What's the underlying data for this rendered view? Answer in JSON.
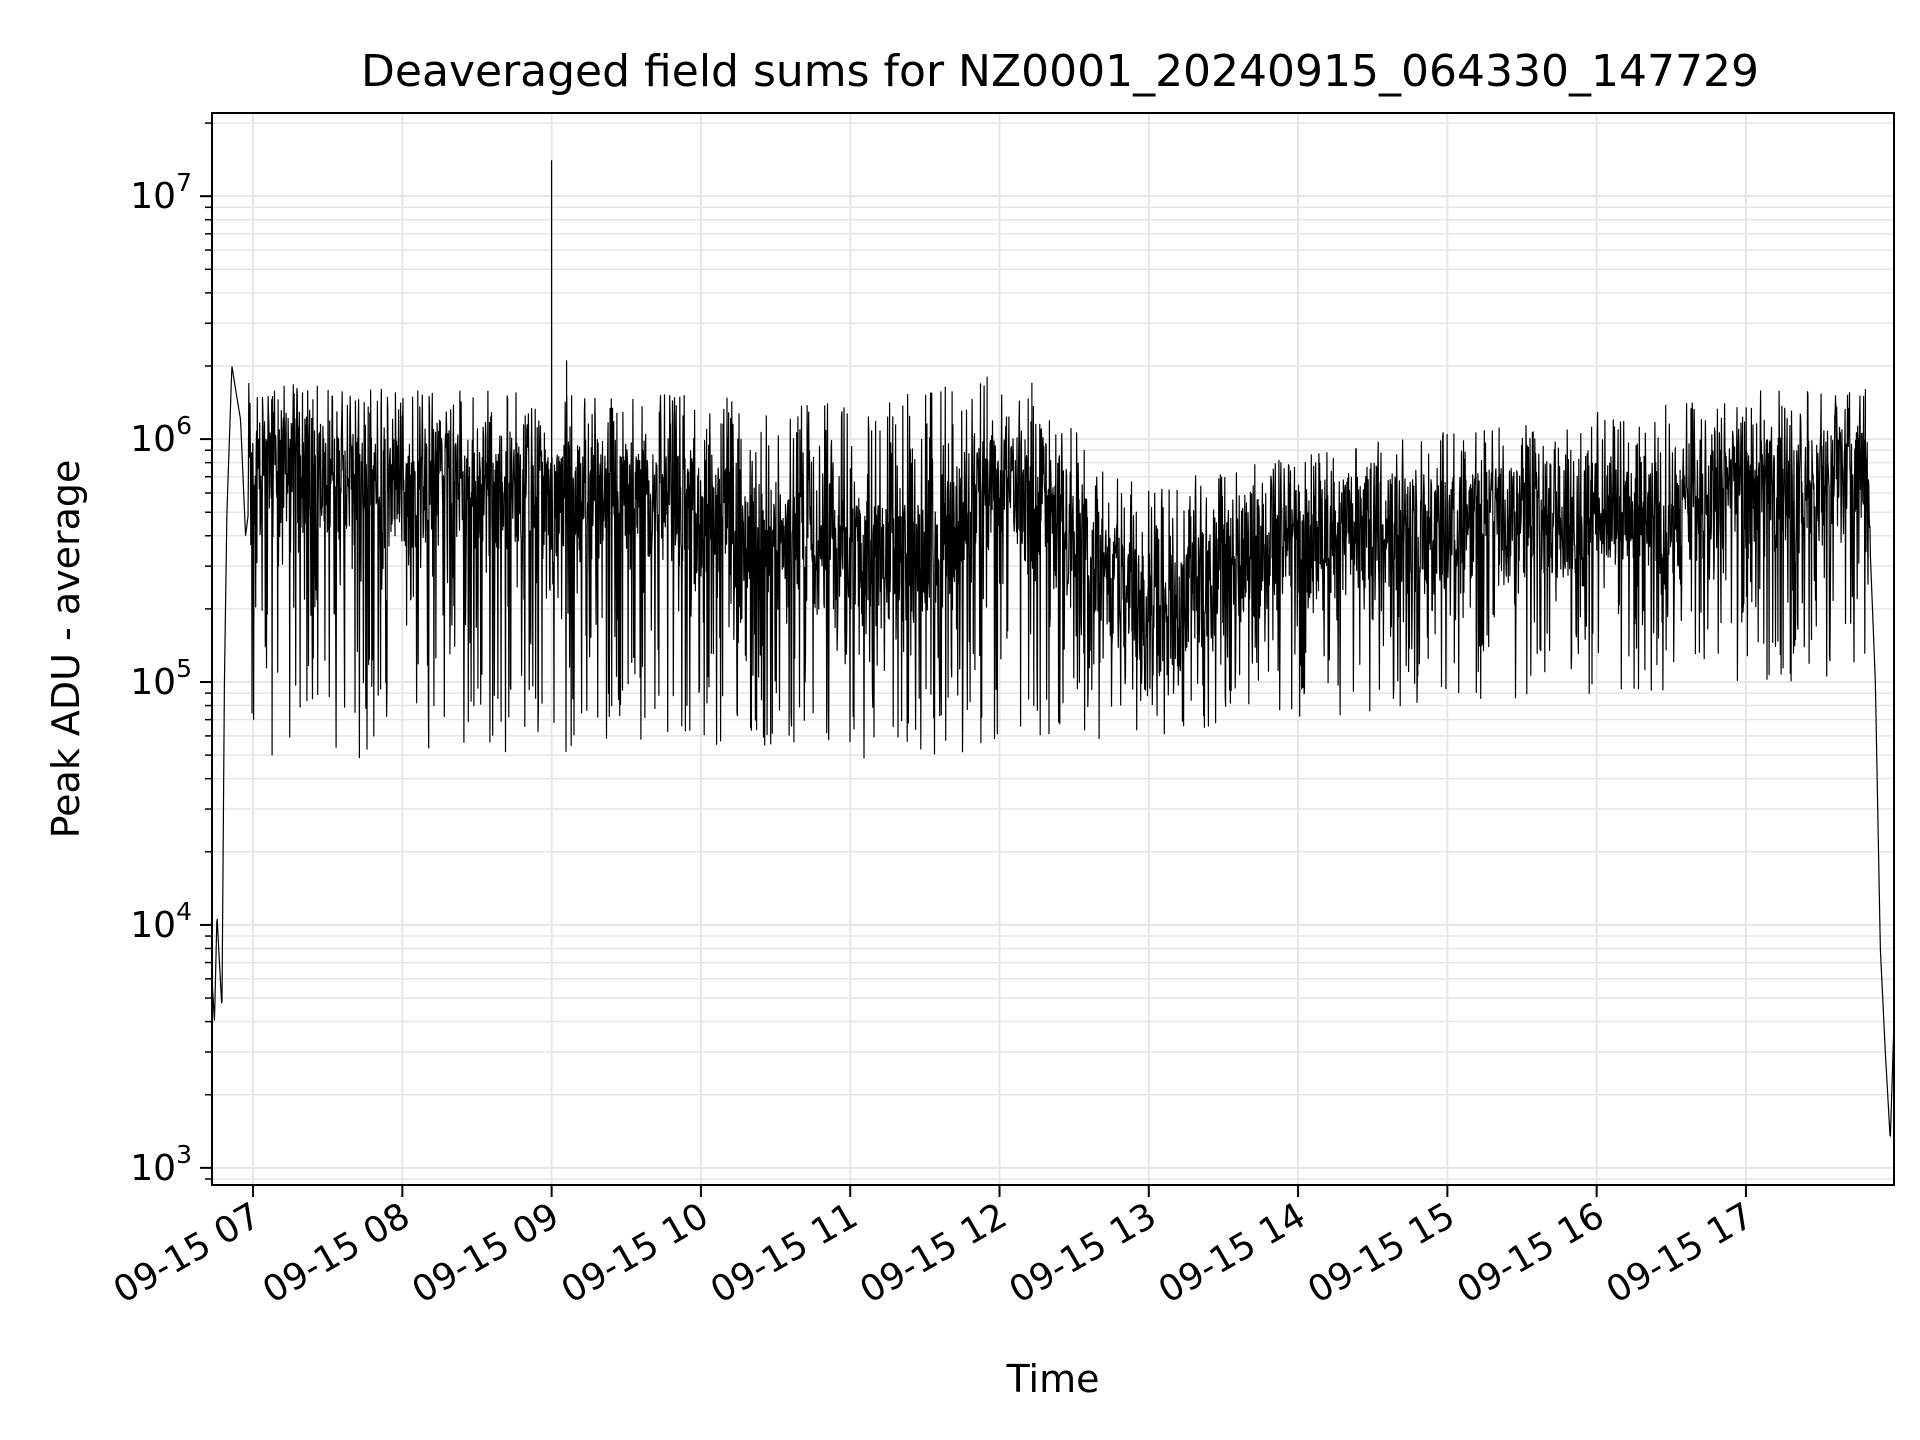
{
  "chart_data": {
    "type": "line",
    "title": "Deaveraged field sums for NZ0001_20240915_064330_147729",
    "xlabel": "Time",
    "ylabel": "Peak ADU - average",
    "yscale": "log",
    "ylim": [
      850,
      22000000
    ],
    "xlim": [
      "2024-09-15 06:43:30",
      "2024-09-15 17:59:30"
    ],
    "x_ticks": [
      {
        "time": "2024-09-15 07:00",
        "label": "09-15 07"
      },
      {
        "time": "2024-09-15 08:00",
        "label": "09-15 08"
      },
      {
        "time": "2024-09-15 09:00",
        "label": "09-15 09"
      },
      {
        "time": "2024-09-15 10:00",
        "label": "09-15 10"
      },
      {
        "time": "2024-09-15 11:00",
        "label": "09-15 11"
      },
      {
        "time": "2024-09-15 12:00",
        "label": "09-15 12"
      },
      {
        "time": "2024-09-15 13:00",
        "label": "09-15 13"
      },
      {
        "time": "2024-09-15 14:00",
        "label": "09-15 14"
      },
      {
        "time": "2024-09-15 15:00",
        "label": "09-15 15"
      },
      {
        "time": "2024-09-15 16:00",
        "label": "09-15 16"
      },
      {
        "time": "2024-09-15 17:00",
        "label": "09-15 17"
      }
    ],
    "y_ticks": [
      {
        "value": 1000,
        "base": "10",
        "exp": "3"
      },
      {
        "value": 10000,
        "base": "10",
        "exp": "4"
      },
      {
        "value": 100000,
        "base": "10",
        "exp": "5"
      },
      {
        "value": 1000000,
        "base": "10",
        "exp": "6"
      },
      {
        "value": 10000000,
        "base": "10",
        "exp": "7"
      }
    ],
    "grid": true,
    "line_color": "#000000",
    "grid_color": "#e6e6e6",
    "series": [
      {
        "values_by_time": [
          [
            "2024-09-15 06:43:30",
            6000
          ],
          [
            "2024-09-15 06:44:30",
            4000
          ],
          [
            "2024-09-15 06:45:30",
            11000
          ],
          [
            "2024-09-15 06:46:30",
            7000
          ],
          [
            "2024-09-15 06:47:30",
            4500
          ],
          [
            "2024-09-15 06:48:30",
            100000
          ],
          [
            "2024-09-15 06:49:30",
            500000
          ],
          [
            "2024-09-15 06:50:30",
            1000000
          ],
          [
            "2024-09-15 06:51:30",
            2000000
          ],
          [
            "2024-09-15 06:53:00",
            1600000
          ],
          [
            "2024-09-15 06:55:00",
            1200000
          ],
          [
            "2024-09-15 06:57:00",
            400000
          ],
          [
            "2024-09-15 07:00",
            700000
          ],
          [
            "2024-09-15 07:30",
            700000
          ],
          [
            "2024-09-15 08:00",
            600000
          ],
          [
            "2024-09-15 08:30",
            650000
          ],
          [
            "2024-09-15 09:00",
            550000
          ],
          [
            "2024-09-15 09:30",
            550000
          ],
          [
            "2024-09-15 10:00",
            480000
          ],
          [
            "2024-09-15 10:30",
            350000
          ],
          [
            "2024-09-15 11:00",
            320000
          ],
          [
            "2024-09-15 11:30",
            300000
          ],
          [
            "2024-09-15 12:00",
            650000
          ],
          [
            "2024-09-15 12:30",
            420000
          ],
          [
            "2024-09-15 13:00",
            170000
          ],
          [
            "2024-09-15 13:30",
            280000
          ],
          [
            "2024-09-15 14:00",
            380000
          ],
          [
            "2024-09-15 14:30",
            420000
          ],
          [
            "2024-09-15 15:00",
            400000
          ],
          [
            "2024-09-15 15:30",
            450000
          ],
          [
            "2024-09-15 16:00",
            480000
          ],
          [
            "2024-09-15 16:30",
            520000
          ],
          [
            "2024-09-15 17:00",
            550000
          ],
          [
            "2024-09-15 17:30",
            650000
          ],
          [
            "2024-09-15 17:49",
            600000
          ],
          [
            "2024-09-15 17:52",
            100000
          ],
          [
            "2024-09-15 17:54",
            8000
          ],
          [
            "2024-09-15 17:56",
            3000
          ],
          [
            "2024-09-15 17:58",
            1300
          ],
          [
            "2024-09-15 17:59:30",
            4000
          ]
        ],
        "spikes": [
          {
            "time": "2024-09-15 09:00",
            "value": 14000000
          },
          {
            "time": "2024-09-15 09:06",
            "value": 2100000
          },
          {
            "time": "2024-09-15 11:55",
            "value": 1800000
          },
          {
            "time": "2024-09-15 12:13",
            "value": 1700000
          },
          {
            "time": "2024-09-15 17:48",
            "value": 1600000
          }
        ],
        "fluctuation_envelope_by_time": [
          [
            "2024-09-15 07:00",
            50000,
            1700000
          ],
          [
            "2024-09-15 08:00",
            48000,
            1650000
          ],
          [
            "2024-09-15 09:00",
            50000,
            1600000
          ],
          [
            "2024-09-15 10:00",
            55000,
            1500000
          ],
          [
            "2024-09-15 11:00",
            48000,
            1400000
          ],
          [
            "2024-09-15 12:00",
            52000,
            1800000
          ],
          [
            "2024-09-15 13:00",
            60000,
            650000
          ],
          [
            "2024-09-15 14:00",
            65000,
            850000
          ],
          [
            "2024-09-15 15:00",
            85000,
            1100000
          ],
          [
            "2024-09-15 16:00",
            85000,
            1300000
          ],
          [
            "2024-09-15 17:00",
            100000,
            1600000
          ]
        ]
      }
    ]
  }
}
